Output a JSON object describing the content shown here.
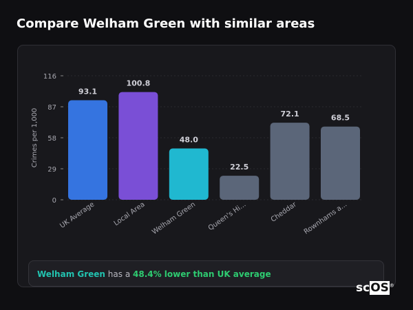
{
  "title": "Compare Welham Green with similar areas",
  "chart_data": {
    "type": "bar",
    "ylabel": "Crimes per 1,000",
    "ylim": [
      0,
      116
    ],
    "yticks": [
      0,
      29,
      58,
      87,
      116
    ],
    "grid": true,
    "categories": [
      "UK Average",
      "Local Area",
      "Welham Green",
      "Queen's Hi...",
      "Cheddar",
      "Rownhams a..."
    ],
    "values": [
      93.1,
      100.8,
      48.0,
      22.5,
      72.1,
      68.5
    ],
    "data_labels": [
      "93.1",
      "100.8",
      "48.0",
      "22.5",
      "72.1",
      "68.5"
    ],
    "colors": [
      "#3574e0",
      "#7a4fd6",
      "#20b8d0",
      "#5b6679",
      "#5b6679",
      "#5b6679"
    ]
  },
  "summary": {
    "area": "Welham Green",
    "middle": " has a ",
    "comparison": "48.4% lower than UK average"
  },
  "logo": {
    "text_a": "sc",
    "text_b": "OS",
    "mark": "®"
  }
}
